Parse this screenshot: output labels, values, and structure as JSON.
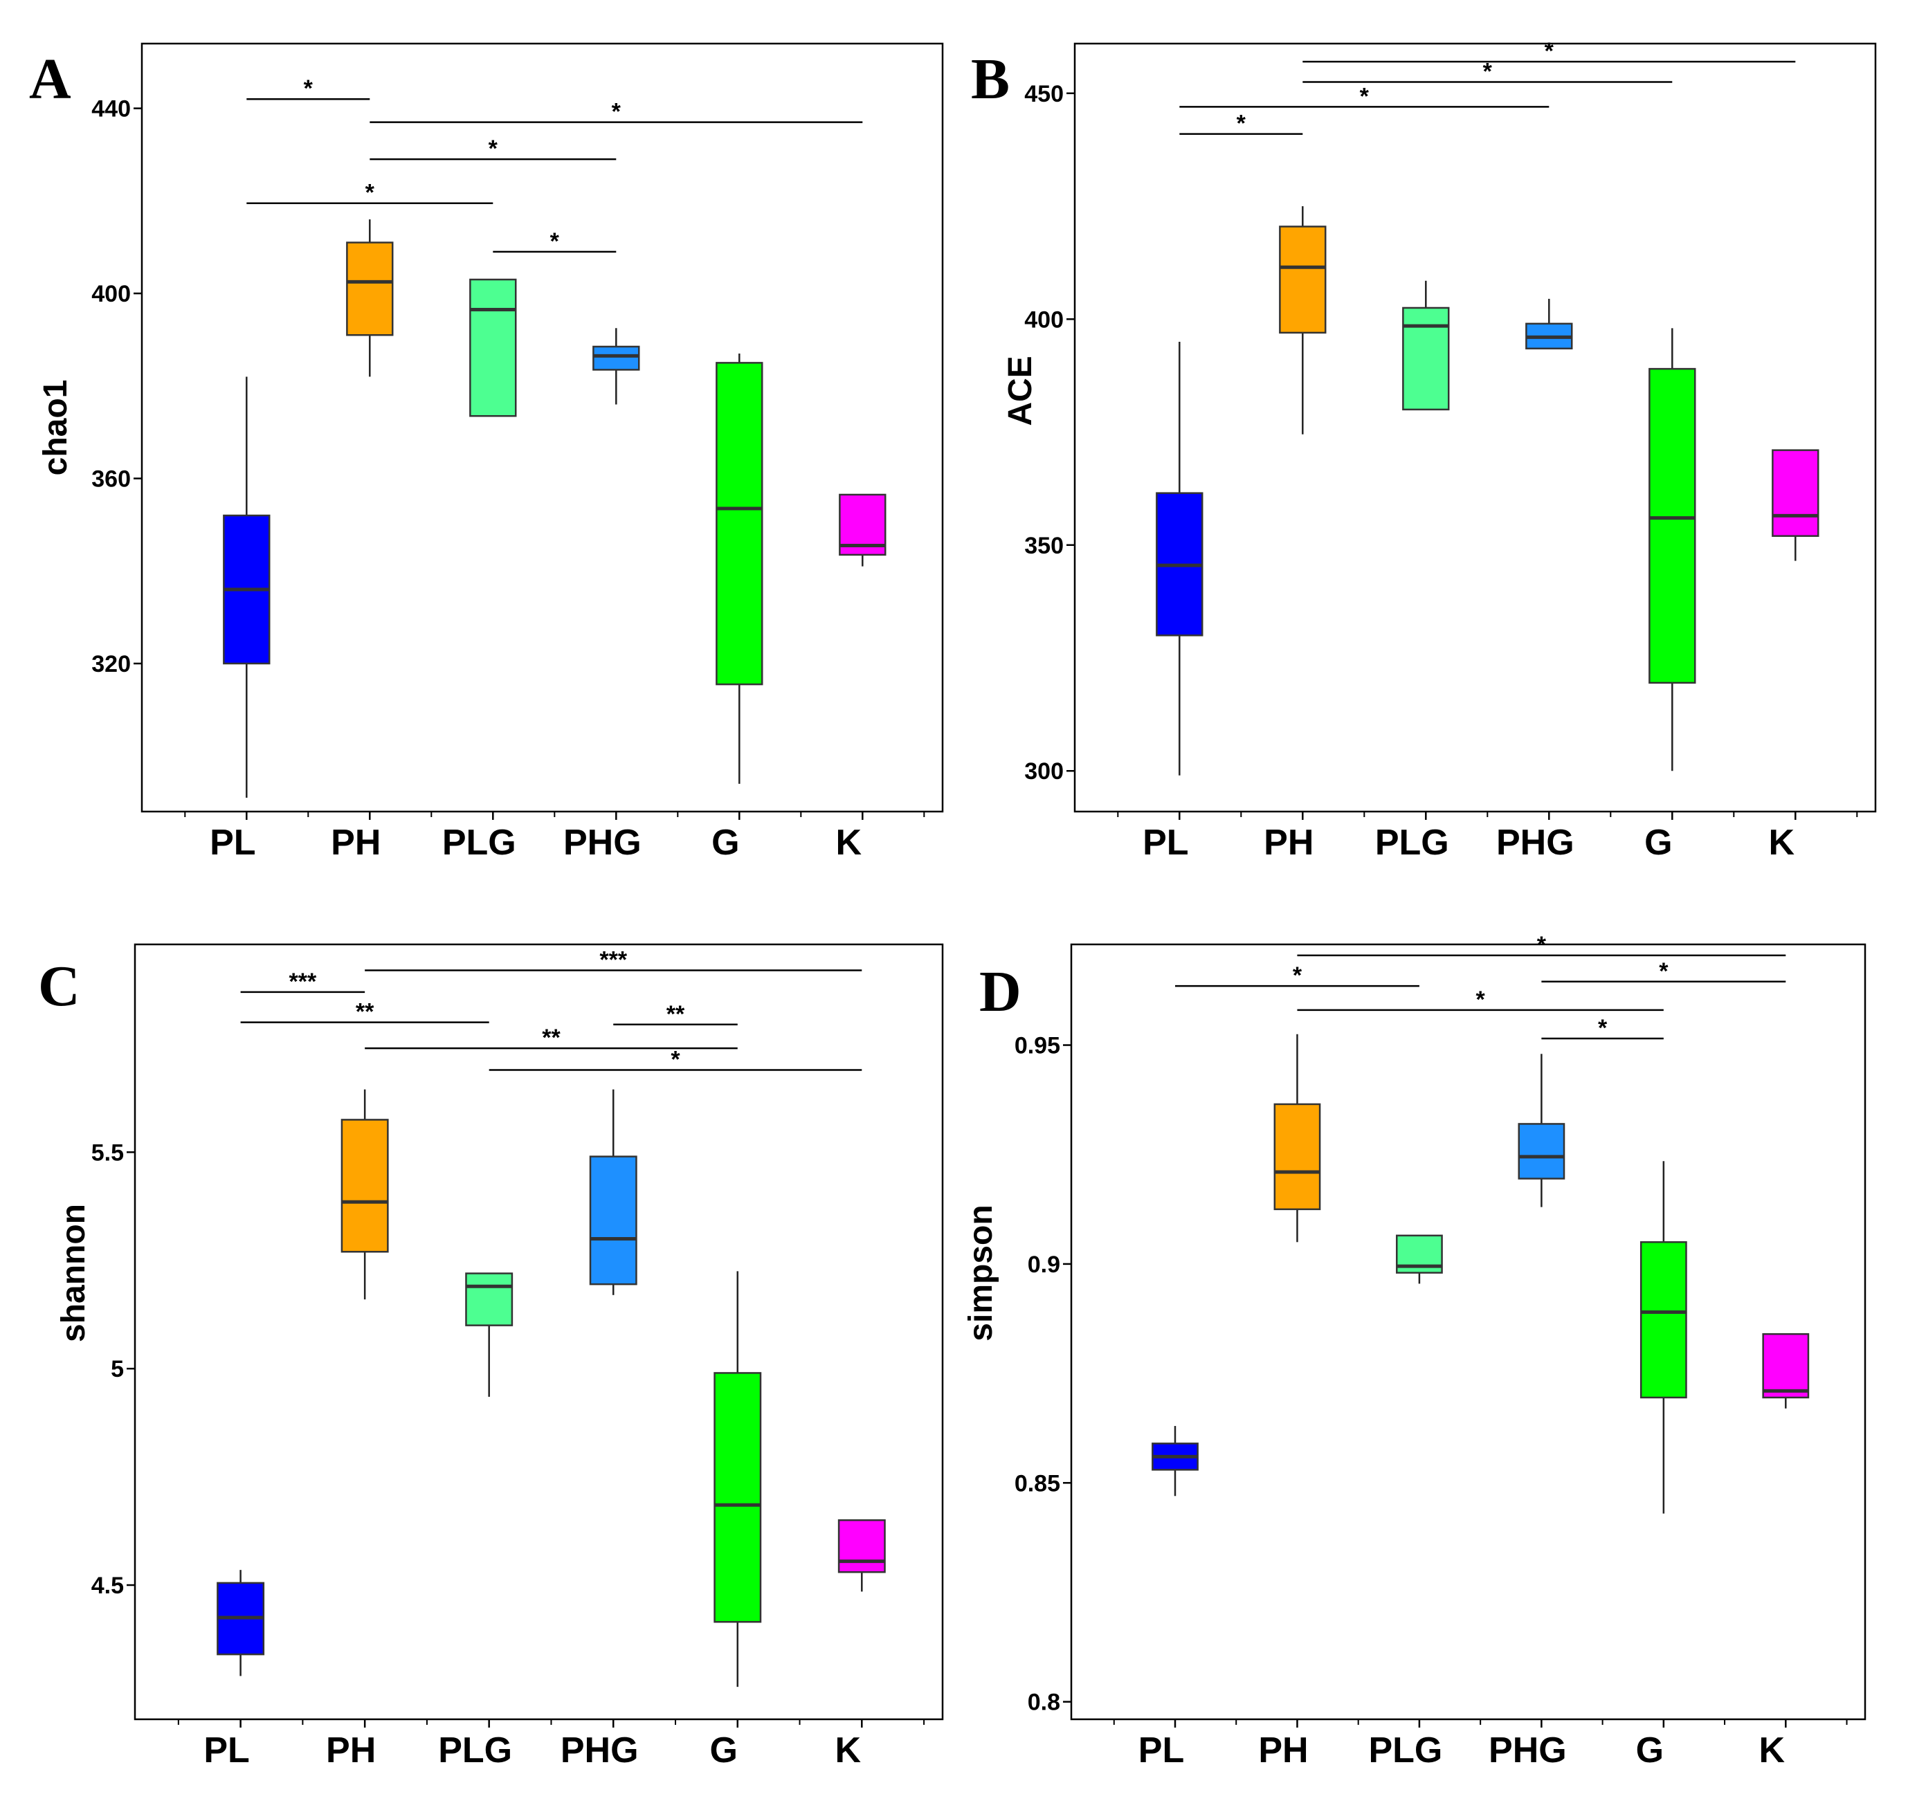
{
  "chart_data": [
    {
      "type": "box",
      "panel_label": "A",
      "title": "",
      "xlabel": "",
      "ylabel": "chao1",
      "categories": [
        "PL",
        "PH",
        "PLG",
        "PHG",
        "G",
        "K"
      ],
      "colors": [
        "#0000ff",
        "#ffa500",
        "#4dff91",
        "#1e90ff",
        "#00ff00",
        "#ff00ff"
      ],
      "yticks": [
        320,
        360,
        400,
        440
      ],
      "ylim": [
        288,
        454
      ],
      "boxes": [
        {
          "min": 291,
          "q1": 320,
          "median": 336,
          "q3": 352,
          "max": 382
        },
        {
          "min": 382,
          "q1": 391,
          "median": 402.5,
          "q3": 411,
          "max": 416
        },
        {
          "min": 373.5,
          "q1": 373.5,
          "median": 396.5,
          "q3": 403,
          "max": 403
        },
        {
          "min": 376,
          "q1": 383.5,
          "median": 386.5,
          "q3": 388.5,
          "max": 392.5
        },
        {
          "min": 294,
          "q1": 315.5,
          "median": 353.5,
          "q3": 385,
          "max": 387
        },
        {
          "min": 341,
          "q1": 343.5,
          "median": 345.5,
          "q3": 356.5,
          "max": 356.5
        }
      ],
      "comparisons": [
        {
          "from": "PL",
          "to": "PH",
          "label": "*",
          "y": 442
        },
        {
          "from": "PH",
          "to": "K",
          "label": "*",
          "y": 437
        },
        {
          "from": "PH",
          "to": "PHG",
          "label": "*",
          "y": 429
        },
        {
          "from": "PL",
          "to": "PLG",
          "label": "*",
          "y": 419.5
        },
        {
          "from": "PLG",
          "to": "PHG",
          "label": "*",
          "y": 409
        }
      ]
    },
    {
      "type": "box",
      "panel_label": "B",
      "title": "",
      "xlabel": "",
      "ylabel": "ACE",
      "categories": [
        "PL",
        "PH",
        "PLG",
        "PHG",
        "G",
        "K"
      ],
      "colors": [
        "#0000ff",
        "#ffa500",
        "#4dff91",
        "#1e90ff",
        "#00ff00",
        "#ff00ff"
      ],
      "yticks": [
        300,
        350,
        400,
        450
      ],
      "ylim": [
        291,
        461
      ],
      "boxes": [
        {
          "min": 299,
          "q1": 330,
          "median": 345.5,
          "q3": 361.5,
          "max": 395
        },
        {
          "min": 374.5,
          "q1": 397,
          "median": 411.5,
          "q3": 420.5,
          "max": 425
        },
        {
          "min": 380,
          "q1": 380,
          "median": 398.5,
          "q3": 402.5,
          "max": 408.5
        },
        {
          "min": 393.5,
          "q1": 393.5,
          "median": 396,
          "q3": 399,
          "max": 404.5
        },
        {
          "min": 300,
          "q1": 319.5,
          "median": 356,
          "q3": 389,
          "max": 398
        },
        {
          "min": 346.5,
          "q1": 352,
          "median": 356.5,
          "q3": 371,
          "max": 371
        }
      ],
      "comparisons": [
        {
          "from": "PH",
          "to": "K",
          "label": "*",
          "y": 457
        },
        {
          "from": "PH",
          "to": "G",
          "label": "*",
          "y": 452.5
        },
        {
          "from": "PL",
          "to": "PHG",
          "label": "*",
          "y": 447
        },
        {
          "from": "PL",
          "to": "PH",
          "label": "*",
          "y": 441
        }
      ]
    },
    {
      "type": "box",
      "panel_label": "C",
      "title": "",
      "xlabel": "",
      "ylabel": "shannon",
      "categories": [
        "PL",
        "PH",
        "PLG",
        "PHG",
        "G",
        "K"
      ],
      "colors": [
        "#0000ff",
        "#ffa500",
        "#4dff91",
        "#1e90ff",
        "#00ff00",
        "#ff00ff"
      ],
      "yticks": [
        4.5,
        5.0,
        5.5
      ],
      "ylim": [
        4.19,
        5.98
      ],
      "boxes": [
        {
          "min": 4.29,
          "q1": 4.34,
          "median": 4.425,
          "q3": 4.505,
          "max": 4.535
        },
        {
          "min": 5.16,
          "q1": 5.27,
          "median": 5.385,
          "q3": 5.575,
          "max": 5.645
        },
        {
          "min": 4.935,
          "q1": 5.1,
          "median": 5.19,
          "q3": 5.22,
          "max": 5.22
        },
        {
          "min": 5.17,
          "q1": 5.195,
          "median": 5.3,
          "q3": 5.49,
          "max": 5.645
        },
        {
          "min": 4.265,
          "q1": 4.415,
          "median": 4.685,
          "q3": 4.99,
          "max": 5.225
        },
        {
          "min": 4.485,
          "q1": 4.53,
          "median": 4.555,
          "q3": 4.65,
          "max": 4.65
        }
      ],
      "comparisons": [
        {
          "from": "PH",
          "to": "K",
          "label": "***",
          "y": 5.92
        },
        {
          "from": "PL",
          "to": "PH",
          "label": "***",
          "y": 5.87
        },
        {
          "from": "PL",
          "to": "PLG",
          "label": "**",
          "y": 5.8
        },
        {
          "from": "PHG",
          "to": "G",
          "label": "**",
          "y": 5.795
        },
        {
          "from": "PH",
          "to": "G",
          "label": "**",
          "y": 5.74
        },
        {
          "from": "PLG",
          "to": "K",
          "label": "*",
          "y": 5.69
        }
      ]
    },
    {
      "type": "box",
      "panel_label": "D",
      "title": "",
      "xlabel": "",
      "ylabel": "simpson",
      "categories": [
        "PL",
        "PH",
        "PLG",
        "PHG",
        "G",
        "K"
      ],
      "colors": [
        "#0000ff",
        "#ffa500",
        "#4dff91",
        "#1e90ff",
        "#00ff00",
        "#ff00ff"
      ],
      "yticks": [
        0.8,
        0.85,
        0.9,
        0.95
      ],
      "ylim": [
        0.796,
        0.973
      ],
      "boxes": [
        {
          "min": 0.847,
          "q1": 0.853,
          "median": 0.856,
          "q3": 0.859,
          "max": 0.863
        },
        {
          "min": 0.905,
          "q1": 0.9125,
          "median": 0.921,
          "q3": 0.9365,
          "max": 0.9525
        },
        {
          "min": 0.8955,
          "q1": 0.898,
          "median": 0.8995,
          "q3": 0.9065,
          "max": 0.9065
        },
        {
          "min": 0.913,
          "q1": 0.9195,
          "median": 0.9245,
          "q3": 0.932,
          "max": 0.948
        },
        {
          "min": 0.843,
          "q1": 0.8695,
          "median": 0.889,
          "q3": 0.905,
          "max": 0.9235
        },
        {
          "min": 0.867,
          "q1": 0.8695,
          "median": 0.871,
          "q3": 0.884,
          "max": 0.884
        }
      ],
      "comparisons": [
        {
          "from": "PH",
          "to": "K",
          "label": "*",
          "y": 0.9705
        },
        {
          "from": "PL",
          "to": "PLG",
          "label": "*",
          "y": 0.9635
        },
        {
          "from": "PHG",
          "to": "K",
          "label": "*",
          "y": 0.9645
        },
        {
          "from": "PH",
          "to": "G",
          "label": "*",
          "y": 0.958
        },
        {
          "from": "PHG",
          "to": "G",
          "label": "*",
          "y": 0.9515
        }
      ]
    }
  ]
}
